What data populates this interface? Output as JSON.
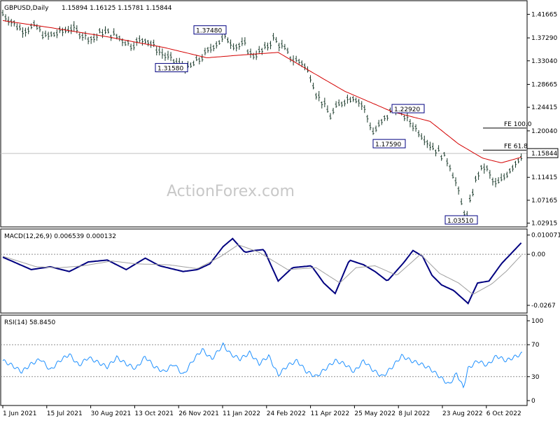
{
  "chart_data": [
    {
      "type": "candlestick",
      "title": "GBPUSD,Daily",
      "ohlc_text": "1.15894 1.16125 1.15781 1.15844",
      "watermark": "ActionForex.com",
      "ylim": [
        1.0248,
        1.438
      ],
      "yticks": [
        "1.41665",
        "1.37290",
        "1.33040",
        "1.28665",
        "1.24415",
        "1.20040",
        "1.15844",
        "1.11415",
        "1.07165",
        "1.02915"
      ],
      "ytick_values": [
        1.41665,
        1.3729,
        1.3304,
        1.28665,
        1.24415,
        1.2004,
        1.15844,
        1.11415,
        1.07165,
        1.02915
      ],
      "current_price": 1.15844,
      "current_price_label": "1.15844",
      "xlabels": [
        "1 Jun 2021",
        "15 Jul 2021",
        "30 Aug 2021",
        "13 Oct 2021",
        "26 Nov 2021",
        "11 Jan 2022",
        "24 Feb 2022",
        "11 Apr 2022",
        "25 May 2022",
        "8 Jul 2022",
        "23 Aug 2022",
        "6 Oct 2022"
      ],
      "price_path": [
        [
          0,
          1.418
        ],
        [
          10,
          1.402
        ],
        [
          20,
          1.388
        ],
        [
          35,
          1.394
        ],
        [
          45,
          1.375
        ],
        [
          60,
          1.383
        ],
        [
          72,
          1.392
        ],
        [
          85,
          1.378
        ],
        [
          95,
          1.371
        ],
        [
          105,
          1.385
        ],
        [
          120,
          1.376
        ],
        [
          135,
          1.36
        ],
        [
          150,
          1.372
        ],
        [
          160,
          1.356
        ],
        [
          172,
          1.338
        ],
        [
          185,
          1.325
        ],
        [
          195,
          1.316
        ],
        [
          205,
          1.33
        ],
        [
          215,
          1.345
        ],
        [
          222,
          1.36
        ],
        [
          235,
          1.374
        ],
        [
          245,
          1.358
        ],
        [
          255,
          1.36
        ],
        [
          262,
          1.34
        ],
        [
          275,
          1.35
        ],
        [
          285,
          1.372
        ],
        [
          295,
          1.355
        ],
        [
          305,
          1.333
        ],
        [
          315,
          1.328
        ],
        [
          325,
          1.3
        ],
        [
          330,
          1.27
        ],
        [
          338,
          1.25
        ],
        [
          345,
          1.228
        ],
        [
          352,
          1.245
        ],
        [
          360,
          1.258
        ],
        [
          370,
          1.265
        ],
        [
          380,
          1.245
        ],
        [
          385,
          1.22
        ],
        [
          390,
          1.198
        ],
        [
          398,
          1.213
        ],
        [
          408,
          1.235
        ],
        [
          412,
          1.245
        ],
        [
          422,
          1.23
        ],
        [
          430,
          1.215
        ],
        [
          440,
          1.196
        ],
        [
          450,
          1.175
        ],
        [
          460,
          1.16
        ],
        [
          470,
          1.142
        ],
        [
          478,
          1.1
        ],
        [
          484,
          1.058
        ],
        [
          489,
          1.041
        ],
        [
          493,
          1.076
        ],
        [
          500,
          1.12
        ],
        [
          508,
          1.135
        ],
        [
          513,
          1.118
        ],
        [
          518,
          1.1
        ],
        [
          525,
          1.108
        ],
        [
          532,
          1.125
        ],
        [
          540,
          1.142
        ],
        [
          547,
          1.158
        ]
      ],
      "ma_path": [
        [
          0,
          1.405
        ],
        [
          50,
          1.392
        ],
        [
          110,
          1.375
        ],
        [
          170,
          1.355
        ],
        [
          215,
          1.336
        ],
        [
          250,
          1.341
        ],
        [
          290,
          1.346
        ],
        [
          320,
          1.315
        ],
        [
          360,
          1.274
        ],
        [
          410,
          1.236
        ],
        [
          450,
          1.218
        ],
        [
          480,
          1.176
        ],
        [
          505,
          1.15
        ],
        [
          525,
          1.141
        ],
        [
          547,
          1.152
        ]
      ],
      "annotations": [
        {
          "label": "1.37480",
          "value": 1.3748
        },
        {
          "label": "1.31580",
          "value": 1.3158
        },
        {
          "label": "1.22920",
          "value": 1.2292
        },
        {
          "label": "1.17590",
          "value": 1.1759
        },
        {
          "label": "1.03510",
          "value": 1.0351
        }
      ],
      "fib_lines": [
        {
          "label": "FE 100.0",
          "value": 1.2056
        },
        {
          "label": "FE 61.8",
          "value": 1.1647
        }
      ]
    },
    {
      "type": "line",
      "title": "MACD(12,26,9) 0.006539 0.000132",
      "ylim": [
        -0.03,
        0.0125
      ],
      "yticks": [
        "0.010071",
        "0.00",
        "-0.0267"
      ],
      "ytick_values": [
        0.010071,
        0.0,
        -0.0267
      ],
      "series": [
        {
          "name": "macd",
          "color": "#000080",
          "points": [
            [
              0,
              -0.0015
            ],
            [
              30,
              -0.008
            ],
            [
              50,
              -0.0065
            ],
            [
              70,
              -0.009
            ],
            [
              90,
              -0.004
            ],
            [
              110,
              -0.003
            ],
            [
              130,
              -0.008
            ],
            [
              150,
              -0.002
            ],
            [
              165,
              -0.006
            ],
            [
              190,
              -0.009
            ],
            [
              205,
              -0.008
            ],
            [
              218,
              -0.005
            ],
            [
              232,
              0.004
            ],
            [
              242,
              0.0082
            ],
            [
              255,
              0.001
            ],
            [
              265,
              0.002
            ],
            [
              275,
              0.0025
            ],
            [
              290,
              -0.014
            ],
            [
              305,
              -0.007
            ],
            [
              325,
              -0.006
            ],
            [
              338,
              -0.015
            ],
            [
              350,
              -0.0205
            ],
            [
              365,
              -0.003
            ],
            [
              380,
              -0.0055
            ],
            [
              392,
              -0.009
            ],
            [
              405,
              -0.014
            ],
            [
              422,
              -0.0045
            ],
            [
              432,
              0.002
            ],
            [
              442,
              -0.001
            ],
            [
              452,
              -0.011
            ],
            [
              462,
              -0.016
            ],
            [
              475,
              -0.019
            ],
            [
              490,
              -0.0257
            ],
            [
              500,
              -0.015
            ],
            [
              512,
              -0.014
            ],
            [
              525,
              -0.005
            ],
            [
              547,
              0.0065
            ]
          ]
        },
        {
          "name": "signal",
          "color": "#a0a0a0",
          "points": [
            [
              0,
              -0.001
            ],
            [
              35,
              -0.0065
            ],
            [
              60,
              -0.007
            ],
            [
              85,
              -0.006
            ],
            [
              115,
              -0.0035
            ],
            [
              140,
              -0.005
            ],
            [
              175,
              -0.0055
            ],
            [
              205,
              -0.0075
            ],
            [
              230,
              -0.001
            ],
            [
              248,
              0.005
            ],
            [
              270,
              0.001
            ],
            [
              300,
              -0.008
            ],
            [
              330,
              -0.007
            ],
            [
              355,
              -0.015
            ],
            [
              372,
              -0.007
            ],
            [
              392,
              -0.006
            ],
            [
              415,
              -0.011
            ],
            [
              440,
              0.0
            ],
            [
              460,
              -0.01
            ],
            [
              480,
              -0.015
            ],
            [
              495,
              -0.021
            ],
            [
              515,
              -0.0155
            ],
            [
              530,
              -0.009
            ],
            [
              547,
              0.0
            ]
          ]
        }
      ],
      "zero_line": 0.0
    },
    {
      "type": "line",
      "title": "RSI(14) 58.8450",
      "ylim": [
        0,
        100
      ],
      "yticks": [
        "100",
        "70",
        "30",
        "0"
      ],
      "ytick_values": [
        100,
        70,
        30,
        0
      ],
      "ref_lines": [
        70,
        30
      ],
      "series": [
        {
          "name": "RSI(14)",
          "color": "#1e90ff",
          "points": [
            [
              0,
              50
            ],
            [
              10,
              44
            ],
            [
              20,
              36
            ],
            [
              30,
              46
            ],
            [
              40,
              52
            ],
            [
              50,
              38
            ],
            [
              60,
              50
            ],
            [
              70,
              58
            ],
            [
              80,
              44
            ],
            [
              90,
              54
            ],
            [
              100,
              48
            ],
            [
              110,
              42
            ],
            [
              120,
              54
            ],
            [
              130,
              46
            ],
            [
              140,
              40
            ],
            [
              150,
              55
            ],
            [
              160,
              42
            ],
            [
              170,
              36
            ],
            [
              180,
              46
            ],
            [
              190,
              32
            ],
            [
              200,
              50
            ],
            [
              210,
              64
            ],
            [
              220,
              52
            ],
            [
              232,
              70
            ],
            [
              240,
              58
            ],
            [
              250,
              52
            ],
            [
              260,
              60
            ],
            [
              270,
              46
            ],
            [
              280,
              56
            ],
            [
              290,
              32
            ],
            [
              300,
              44
            ],
            [
              310,
              50
            ],
            [
              320,
              36
            ],
            [
              330,
              30
            ],
            [
              340,
              40
            ],
            [
              350,
              50
            ],
            [
              360,
              46
            ],
            [
              370,
              36
            ],
            [
              380,
              50
            ],
            [
              390,
              38
            ],
            [
              400,
              30
            ],
            [
              410,
              42
            ],
            [
              420,
              56
            ],
            [
              430,
              50
            ],
            [
              440,
              46
            ],
            [
              450,
              40
            ],
            [
              460,
              30
            ],
            [
              470,
              20
            ],
            [
              478,
              34
            ],
            [
              485,
              16
            ],
            [
              490,
              40
            ],
            [
              500,
              50
            ],
            [
              510,
              44
            ],
            [
              520,
              56
            ],
            [
              530,
              50
            ],
            [
              547,
              58.845
            ]
          ]
        }
      ]
    }
  ]
}
